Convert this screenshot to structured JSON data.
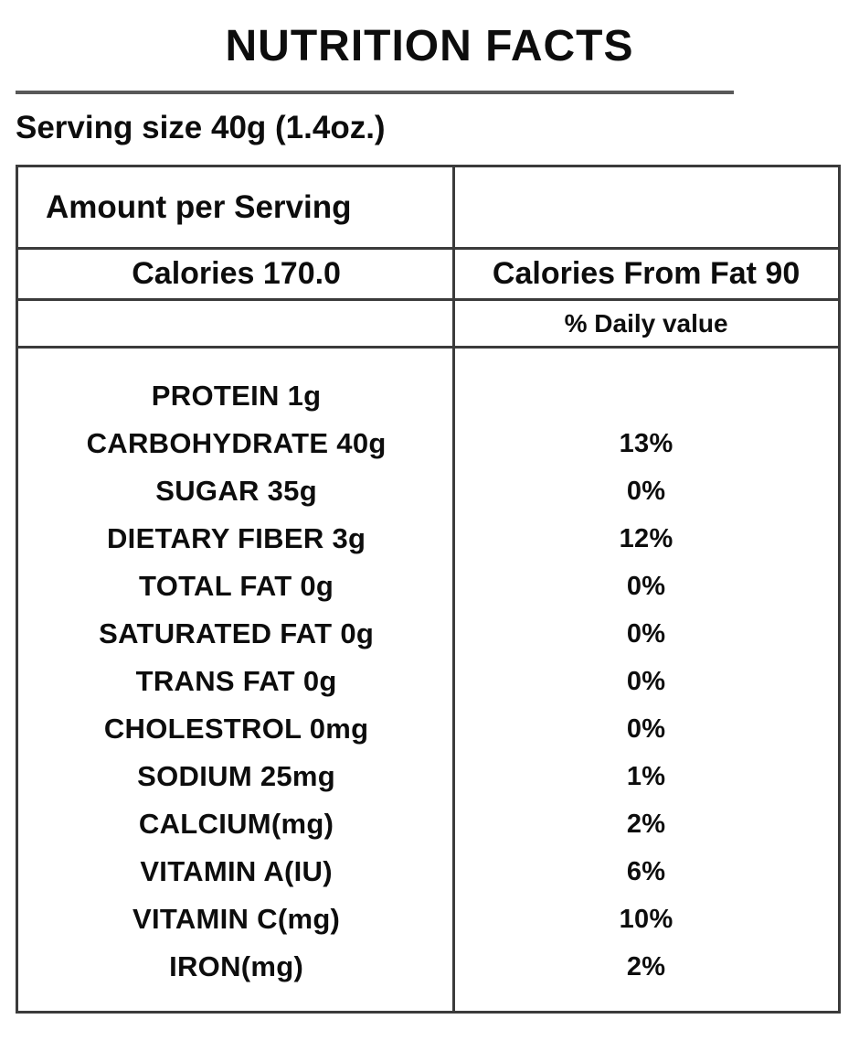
{
  "page": {
    "title": "NUTRITION FACTS",
    "serving_size": "Serving size 40g (1.4oz.)"
  },
  "colors": {
    "text": "#0d0d0d",
    "table_border": "#3b3b3b",
    "title_rule": "#595959",
    "background": "#ffffff"
  },
  "table": {
    "amount_header": "Amount per Serving",
    "calories_label": "Calories 170.0",
    "calories_from_fat_label": "Calories From Fat 90",
    "daily_value_header": "% Daily value",
    "rows": [
      {
        "label": "PROTEIN 1g",
        "value": ""
      },
      {
        "label": "CARBOHYDRATE 40g",
        "value": "13%"
      },
      {
        "label": "SUGAR 35g",
        "value": "0%"
      },
      {
        "label": "DIETARY FIBER 3g",
        "value": "12%"
      },
      {
        "label": "TOTAL FAT 0g",
        "value": "0%"
      },
      {
        "label": "SATURATED FAT 0g",
        "value": "0%"
      },
      {
        "label": "TRANS FAT 0g",
        "value": "0%"
      },
      {
        "label": "CHOLESTROL 0mg",
        "value": "0%"
      },
      {
        "label": "SODIUM 25mg",
        "value": "1%"
      },
      {
        "label": "CALCIUM(mg)",
        "value": "2%"
      },
      {
        "label": "VITAMIN A(IU)",
        "value": "6%"
      },
      {
        "label": "VITAMIN C(mg)",
        "value": "10%"
      },
      {
        "label": "IRON(mg)",
        "value": "2%"
      }
    ]
  }
}
